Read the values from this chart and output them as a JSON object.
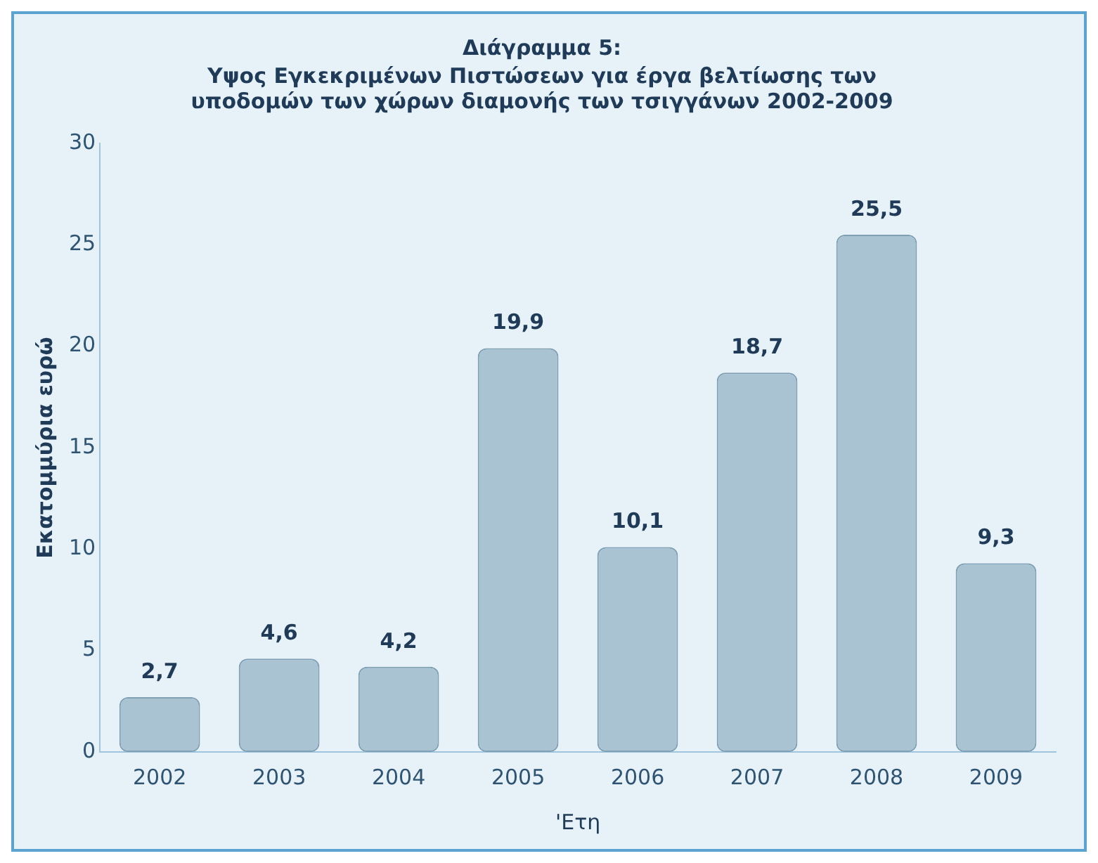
{
  "chart_data": {
    "type": "bar",
    "title": "Διάγραμμα 5:",
    "subtitle": "Υψος Εγκεκριμένων Πιστώσεων για έργα βελτίωσης των υποδομών των χώρων διαμονής των τσιγγάνων 2002-2009",
    "xlabel": "'Ετη",
    "ylabel": "Εκατομμύρια ευρώ",
    "categories": [
      "2002",
      "2003",
      "2004",
      "2005",
      "2006",
      "2007",
      "2008",
      "2009"
    ],
    "values": [
      2.7,
      4.6,
      4.2,
      19.9,
      10.1,
      18.7,
      25.5,
      9.3
    ],
    "value_labels": [
      "2,7",
      "4,6",
      "4,2",
      "19,9",
      "10,1",
      "18,7",
      "25,5",
      "9,3"
    ],
    "color": "#a9c3d3",
    "ylim": [
      0,
      30
    ],
    "yticks": [
      0,
      5,
      10,
      15,
      20,
      25,
      30
    ],
    "grid": false,
    "legend": false
  }
}
